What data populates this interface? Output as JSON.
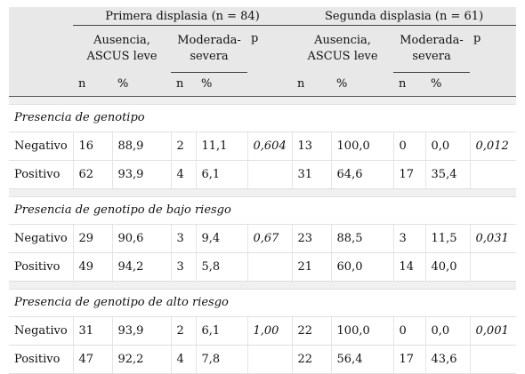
{
  "header": {
    "group1": "Primera displasia (n = 84)",
    "group2": "Segunda displasia (n = 61)",
    "sub_absence_l1": "Ausencia,",
    "sub_absence_l2": "ASCUS leve",
    "sub_moderate_l1": "Moderada-",
    "sub_moderate_l2": "severa",
    "p_label": "p",
    "n_label": "n",
    "pct_label": "%"
  },
  "sections": [
    {
      "title": "Presencia de genotipo",
      "rows": [
        {
          "label": "Negativo",
          "c1": "16",
          "c2": "88,9",
          "c3": "2",
          "c4": "11,1",
          "p1": "0,604",
          "c5": "13",
          "c6": "100,0",
          "c7": "0",
          "c8": "0,0",
          "p2": "0,012"
        },
        {
          "label": "Positivo",
          "c1": "62",
          "c2": "93,9",
          "c3": "4",
          "c4": "6,1",
          "p1": "",
          "c5": "31",
          "c6": "64,6",
          "c7": "17",
          "c8": "35,4",
          "p2": ""
        }
      ]
    },
    {
      "title": "Presencia de genotipo de bajo riesgo",
      "rows": [
        {
          "label": "Negativo",
          "c1": "29",
          "c2": "90,6",
          "c3": "3",
          "c4": "9,4",
          "p1": "0,67",
          "c5": "23",
          "c6": "88,5",
          "c7": "3",
          "c8": "11,5",
          "p2": "0,031"
        },
        {
          "label": "Positivo",
          "c1": "49",
          "c2": "94,2",
          "c3": "3",
          "c4": "5,8",
          "p1": "",
          "c5": "21",
          "c6": "60,0",
          "c7": "14",
          "c8": "40,0",
          "p2": ""
        }
      ]
    },
    {
      "title": "Presencia de genotipo de alto riesgo",
      "rows": [
        {
          "label": "Negativo",
          "c1": "31",
          "c2": "93,9",
          "c3": "2",
          "c4": "6,1",
          "p1": "1,00",
          "c5": "22",
          "c6": "100,0",
          "c7": "0",
          "c8": "0,0",
          "p2": "0,001"
        },
        {
          "label": "Positivo",
          "c1": "47",
          "c2": "92,2",
          "c3": "4",
          "c4": "7,8",
          "p1": "",
          "c5": "22",
          "c6": "56,4",
          "c7": "17",
          "c8": "43,6",
          "p2": ""
        }
      ]
    }
  ]
}
